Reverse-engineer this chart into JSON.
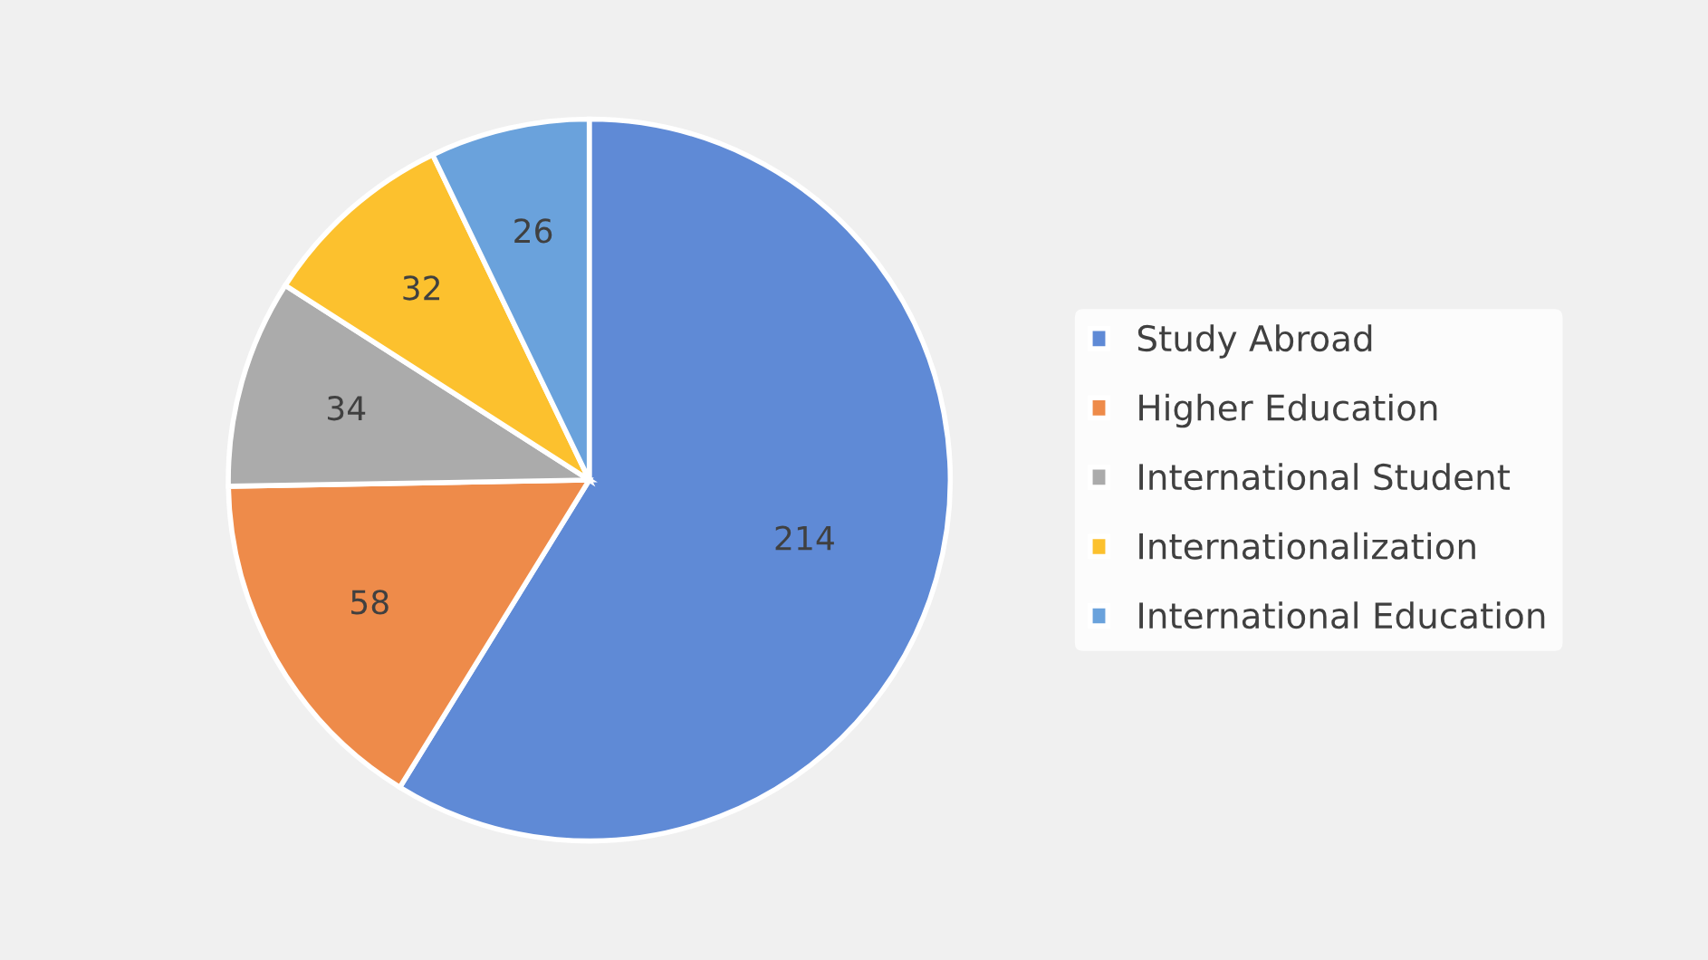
{
  "chart_data": {
    "type": "pie",
    "categories": [
      "Study Abroad",
      "Higher Education",
      "International Student",
      "Internationalization",
      "International Education"
    ],
    "values": [
      214,
      58,
      34,
      32,
      26
    ],
    "colors": [
      "#5f8ad6",
      "#ee8b4a",
      "#ababab",
      "#fcc12e",
      "#6aa2dc"
    ],
    "data_labels": true,
    "legend": "right"
  }
}
